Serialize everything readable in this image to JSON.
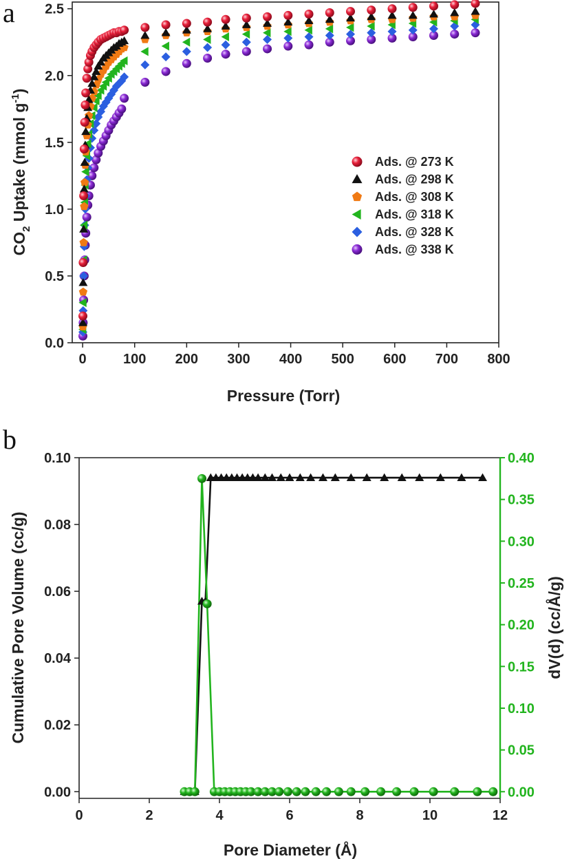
{
  "chart_data": [
    {
      "panel": "a",
      "type": "scatter",
      "title": "",
      "xlabel": "Pressure (Torr)",
      "ylabel_parts": [
        "CO",
        "2",
        " Uptake (mmol g",
        "-1",
        ")"
      ],
      "xlim": [
        -20,
        800
      ],
      "ylim": [
        0,
        2.55
      ],
      "xticks": [
        0,
        100,
        200,
        300,
        400,
        500,
        600,
        700,
        800
      ],
      "yticks": [
        "0.0",
        "0.5",
        "1.0",
        "1.5",
        "2.0",
        "2.5"
      ],
      "legend_position": "center-right",
      "series": [
        {
          "name": "Ads. @ 273 K",
          "color": "#e8203a",
          "marker": "sphere",
          "x": [
            0.5,
            1,
            2,
            3,
            4,
            5,
            6,
            8,
            10,
            12,
            15,
            18,
            22,
            26,
            30,
            35,
            40,
            45,
            50,
            55,
            60,
            65,
            70,
            75,
            80,
            120,
            160,
            200,
            240,
            275,
            315,
            355,
            395,
            435,
            475,
            515,
            555,
            595,
            635,
            675,
            715,
            755
          ],
          "y": [
            0.2,
            0.6,
            1.1,
            1.45,
            1.65,
            1.78,
            1.87,
            1.98,
            2.05,
            2.1,
            2.15,
            2.18,
            2.21,
            2.23,
            2.25,
            2.27,
            2.28,
            2.29,
            2.3,
            2.31,
            2.32,
            2.32,
            2.33,
            2.33,
            2.34,
            2.36,
            2.38,
            2.39,
            2.4,
            2.42,
            2.43,
            2.44,
            2.45,
            2.46,
            2.47,
            2.48,
            2.49,
            2.5,
            2.51,
            2.52,
            2.53,
            2.54
          ]
        },
        {
          "name": "Ads. @ 298 K",
          "color": "#111111",
          "marker": "triangle-up",
          "x": [
            0.5,
            1,
            2,
            3,
            4,
            5,
            6,
            8,
            10,
            12,
            15,
            18,
            22,
            26,
            30,
            35,
            40,
            45,
            50,
            55,
            60,
            65,
            70,
            75,
            80,
            120,
            160,
            200,
            240,
            275,
            315,
            355,
            395,
            435,
            475,
            515,
            555,
            595,
            635,
            675,
            715,
            755
          ],
          "y": [
            0.15,
            0.45,
            0.85,
            1.15,
            1.35,
            1.48,
            1.58,
            1.68,
            1.76,
            1.82,
            1.89,
            1.94,
            1.99,
            2.03,
            2.07,
            2.1,
            2.13,
            2.15,
            2.17,
            2.19,
            2.21,
            2.22,
            2.24,
            2.25,
            2.26,
            2.3,
            2.32,
            2.34,
            2.35,
            2.37,
            2.38,
            2.39,
            2.4,
            2.41,
            2.42,
            2.43,
            2.44,
            2.45,
            2.45,
            2.46,
            2.47,
            2.48
          ]
        },
        {
          "name": "Ads. @ 308 K",
          "color": "#f07a14",
          "marker": "pentagon",
          "x": [
            0.5,
            1,
            2,
            3,
            4,
            5,
            6,
            8,
            10,
            12,
            15,
            18,
            22,
            26,
            30,
            35,
            40,
            45,
            50,
            55,
            60,
            65,
            70,
            75,
            80,
            120,
            160,
            200,
            240,
            275,
            315,
            355,
            395,
            435,
            475,
            515,
            555,
            595,
            635,
            675,
            715,
            755
          ],
          "y": [
            0.12,
            0.38,
            0.75,
            1.02,
            1.2,
            1.33,
            1.43,
            1.55,
            1.63,
            1.7,
            1.77,
            1.83,
            1.88,
            1.93,
            1.97,
            2.01,
            2.04,
            2.07,
            2.1,
            2.12,
            2.14,
            2.16,
            2.18,
            2.2,
            2.21,
            2.27,
            2.3,
            2.32,
            2.33,
            2.35,
            2.36,
            2.37,
            2.38,
            2.39,
            2.4,
            2.41,
            2.42,
            2.42,
            2.43,
            2.44,
            2.44,
            2.45
          ]
        },
        {
          "name": "Ads. @ 318 K",
          "color": "#22b41e",
          "marker": "triangle-left",
          "x": [
            0.5,
            1,
            2,
            3,
            4,
            5,
            6,
            8,
            10,
            12,
            15,
            18,
            22,
            26,
            30,
            35,
            40,
            45,
            50,
            55,
            60,
            65,
            70,
            75,
            80,
            120,
            160,
            200,
            240,
            275,
            315,
            355,
            395,
            435,
            475,
            515,
            555,
            595,
            635,
            675,
            715,
            755
          ],
          "y": [
            0.1,
            0.3,
            0.62,
            0.88,
            1.05,
            1.18,
            1.28,
            1.4,
            1.49,
            1.56,
            1.64,
            1.7,
            1.76,
            1.81,
            1.85,
            1.89,
            1.92,
            1.95,
            1.98,
            2.01,
            2.03,
            2.05,
            2.07,
            2.09,
            2.11,
            2.18,
            2.22,
            2.25,
            2.27,
            2.29,
            2.31,
            2.32,
            2.33,
            2.34,
            2.35,
            2.36,
            2.37,
            2.38,
            2.39,
            2.4,
            2.41,
            2.42
          ]
        },
        {
          "name": "Ads. @ 328 K",
          "color": "#2b5fe0",
          "marker": "diamond",
          "x": [
            0.5,
            1,
            2,
            3,
            4,
            5,
            6,
            8,
            10,
            12,
            15,
            18,
            22,
            26,
            30,
            35,
            40,
            45,
            50,
            55,
            60,
            65,
            70,
            75,
            80,
            120,
            160,
            200,
            240,
            275,
            315,
            355,
            395,
            435,
            475,
            515,
            555,
            595,
            635,
            675,
            715,
            755
          ],
          "y": [
            0.08,
            0.24,
            0.5,
            0.72,
            0.88,
            1.0,
            1.1,
            1.22,
            1.31,
            1.38,
            1.46,
            1.53,
            1.59,
            1.64,
            1.69,
            1.73,
            1.77,
            1.8,
            1.83,
            1.86,
            1.89,
            1.92,
            1.94,
            1.96,
            1.99,
            2.08,
            2.14,
            2.18,
            2.21,
            2.23,
            2.25,
            2.27,
            2.28,
            2.29,
            2.3,
            2.31,
            2.32,
            2.33,
            2.34,
            2.35,
            2.37,
            2.38
          ]
        },
        {
          "name": "Ads. @ 338 K",
          "color": "#8a2ad4",
          "marker": "sphere",
          "x": [
            0.5,
            1,
            2,
            3,
            4,
            5,
            6,
            8,
            10,
            12,
            15,
            18,
            22,
            26,
            30,
            35,
            40,
            45,
            50,
            55,
            60,
            65,
            70,
            75,
            80,
            120,
            160,
            200,
            240,
            275,
            315,
            355,
            395,
            435,
            475,
            515,
            555,
            595,
            635,
            675,
            715,
            755
          ],
          "y": [
            0.05,
            0.15,
            0.32,
            0.5,
            0.62,
            0.73,
            0.82,
            0.94,
            1.03,
            1.1,
            1.18,
            1.25,
            1.31,
            1.37,
            1.42,
            1.47,
            1.51,
            1.55,
            1.59,
            1.63,
            1.66,
            1.69,
            1.72,
            1.75,
            1.83,
            1.95,
            2.03,
            2.09,
            2.13,
            2.16,
            2.18,
            2.2,
            2.22,
            2.23,
            2.25,
            2.26,
            2.27,
            2.28,
            2.29,
            2.3,
            2.31,
            2.32
          ]
        }
      ]
    },
    {
      "panel": "b",
      "type": "line",
      "title": "",
      "xlabel": "Pore Diameter (Å)",
      "ylabel": "Cumulative Pore Volume (cc/g)",
      "ylabel_right": "dV(d) (cc/Å/g)",
      "xlim": [
        0,
        12
      ],
      "ylim": [
        -0.002,
        0.1
      ],
      "ylim_right": [
        -0.008,
        0.4
      ],
      "xticks": [
        "0",
        "2",
        "4",
        "6",
        "8",
        "10",
        "12"
      ],
      "yticks": [
        "0.00",
        "0.02",
        "0.04",
        "0.06",
        "0.08",
        "0.10"
      ],
      "yticks_right": [
        "0.00",
        "0.05",
        "0.10",
        "0.15",
        "0.20",
        "0.25",
        "0.30",
        "0.35",
        "0.40"
      ],
      "series": [
        {
          "name": "Cumulative Pore Volume",
          "axis": "left",
          "color": "#111111",
          "marker": "triangle-up",
          "x": [
            3.0,
            3.15,
            3.3,
            3.5,
            3.6,
            3.75,
            3.9,
            4.05,
            4.2,
            4.35,
            4.5,
            4.65,
            4.8,
            4.95,
            5.1,
            5.3,
            5.5,
            5.75,
            6.0,
            6.3,
            6.6,
            6.95,
            7.3,
            7.75,
            8.2,
            8.7,
            9.2,
            9.7,
            10.3,
            10.9,
            11.5
          ],
          "y": [
            0.0,
            0.0,
            0.0,
            0.057,
            0.057,
            0.094,
            0.094,
            0.094,
            0.094,
            0.094,
            0.094,
            0.094,
            0.094,
            0.094,
            0.094,
            0.094,
            0.094,
            0.094,
            0.094,
            0.094,
            0.094,
            0.094,
            0.094,
            0.094,
            0.094,
            0.094,
            0.094,
            0.094,
            0.094,
            0.094,
            0.094
          ]
        },
        {
          "name": "dV(d)",
          "axis": "right",
          "color": "#22b41e",
          "marker": "sphere",
          "x": [
            3.0,
            3.15,
            3.3,
            3.5,
            3.65,
            3.85,
            4.0,
            4.15,
            4.3,
            4.45,
            4.6,
            4.75,
            4.9,
            5.1,
            5.3,
            5.5,
            5.7,
            5.95,
            6.2,
            6.45,
            6.75,
            7.05,
            7.4,
            7.75,
            8.15,
            8.6,
            9.05,
            9.55,
            10.1,
            10.7,
            11.35,
            11.8
          ],
          "y": [
            0.0,
            0.0,
            0.0,
            0.375,
            0.225,
            0.0,
            0.0,
            0.0,
            0.0,
            0.0,
            0.0,
            0.0,
            0.0,
            0.0,
            0.0,
            0.0,
            0.0,
            0.0,
            0.0,
            0.0,
            0.0,
            0.0,
            0.0,
            0.0,
            0.0,
            0.0,
            0.0,
            0.0,
            0.0,
            0.0,
            0.0,
            0.0
          ]
        }
      ]
    }
  ],
  "labels": {
    "panel_a": "a",
    "panel_b": "b"
  }
}
